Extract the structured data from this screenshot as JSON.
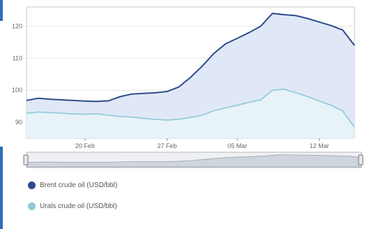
{
  "chart_data": {
    "type": "area",
    "x_ticks": [
      "20 Feb",
      "27 Feb",
      "05 Mar",
      "12 Mar"
    ],
    "y_ticks": [
      90,
      100,
      110,
      120
    ],
    "ylim": [
      85,
      126
    ],
    "x": [
      "15 Feb",
      "16 Feb",
      "17 Feb",
      "18 Feb",
      "19 Feb",
      "20 Feb",
      "21 Feb",
      "22 Feb",
      "23 Feb",
      "24 Feb",
      "25 Feb",
      "26 Feb",
      "27 Feb",
      "28 Feb",
      "01 Mar",
      "02 Mar",
      "03 Mar",
      "04 Mar",
      "05 Mar",
      "06 Mar",
      "07 Mar",
      "08 Mar",
      "09 Mar",
      "10 Mar",
      "11 Mar",
      "12 Mar",
      "13 Mar",
      "14 Mar",
      "15 Mar"
    ],
    "series": [
      {
        "name": "Brent crude oil (USD/bbl)",
        "color": "#2f4a8c",
        "fill": "#dde6f6",
        "values": [
          96.8,
          97.5,
          97.2,
          97.0,
          96.8,
          96.6,
          96.5,
          96.7,
          98.0,
          98.8,
          99.0,
          99.2,
          99.6,
          101.0,
          104.0,
          107.5,
          111.5,
          114.5,
          116.2,
          118.0,
          120.0,
          124.0,
          123.6,
          123.3,
          122.4,
          121.3,
          120.2,
          118.8,
          114.0
        ]
      },
      {
        "name": "Urals crude oil (USD/bbl)",
        "color": "#8ec9d8",
        "fill": "#e8f4f7",
        "values": [
          92.8,
          93.2,
          93.0,
          92.8,
          92.6,
          92.5,
          92.6,
          92.2,
          91.8,
          91.6,
          91.2,
          90.9,
          90.7,
          90.9,
          91.5,
          92.2,
          93.6,
          94.5,
          95.3,
          96.2,
          97.0,
          100.0,
          100.3,
          99.2,
          98.0,
          96.6,
          95.3,
          93.5,
          88.5
        ]
      }
    ],
    "grid": true,
    "legend_position": "bottom-left"
  },
  "legend": {
    "brent_label": "Brent crude oil (USD/bbl)",
    "urals_label": "Urals crude oil (USD/bbl)",
    "brent_color": "#2f4a8c",
    "urals_color": "#8ec9d8"
  }
}
